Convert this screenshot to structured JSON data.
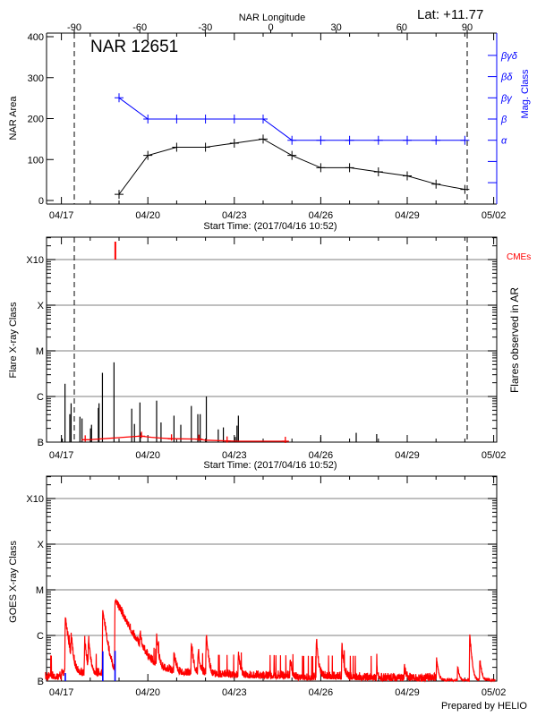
{
  "chart_data": [
    {
      "type": "line",
      "title": "NAR 12651",
      "latitude_label": "Lat: +11.77",
      "xlabel": "Start Time: (2017/04/16 10:52)",
      "top_xlabel": "NAR Longitude",
      "ylabel": "NAR Area",
      "y2label": "Mag. Class",
      "ylim": [
        0,
        400
      ],
      "yticks": [
        "0",
        "100",
        "200",
        "300",
        "400"
      ],
      "xticks": [
        "04/17",
        "04/20",
        "04/23",
        "04/26",
        "04/29",
        "05/02"
      ],
      "top_xticks": [
        "-90",
        "-60",
        "-30",
        "0",
        "30",
        "60",
        "90"
      ],
      "mag_class_ticks": [
        "α",
        "β",
        "βγ",
        "βδ",
        "βγδ"
      ],
      "limb_longitudes": [
        -90,
        90
      ],
      "x": [
        "04/19",
        "04/20",
        "04/21",
        "04/22",
        "04/23",
        "04/24",
        "04/25",
        "04/26",
        "04/27",
        "04/28",
        "04/29",
        "04/30",
        "05/01"
      ],
      "series": [
        {
          "name": "NAR Area",
          "color": "#000000",
          "values": [
            15,
            110,
            130,
            130,
            140,
            150,
            110,
            80,
            80,
            70,
            60,
            40,
            27
          ]
        },
        {
          "name": "Mag. Class",
          "color": "#0000ff",
          "values": [
            "βγ",
            "β",
            "β",
            "β",
            "β",
            "β",
            "α",
            "α",
            "α",
            "α",
            "α",
            "α",
            "α"
          ]
        }
      ]
    },
    {
      "type": "bar",
      "xlabel": "Start Time: (2017/04/16 10:52)",
      "ylabel": "Flare X-ray Class",
      "y2label": "Flares observed in AR",
      "cme_label": "CMEs",
      "yscale": "log",
      "yticks": [
        "B",
        "C",
        "M",
        "X",
        "X10"
      ],
      "xticks": [
        "04/17",
        "04/20",
        "04/23",
        "04/26",
        "04/29",
        "05/02"
      ],
      "grid": true,
      "limb_longitudes": [
        -90,
        90
      ],
      "flares": [
        [
          "04/17 00:42",
          "B1.2"
        ],
        [
          "04/17 03:00",
          "C1.9"
        ],
        [
          "04/17 07:00",
          "B4.1"
        ],
        [
          "04/17 08:05",
          "B7.1"
        ],
        [
          "04/17 15:27",
          "B3.6"
        ],
        [
          "04/17 17:10",
          "B3.3"
        ],
        [
          "04/18 00:15",
          "B2.0"
        ],
        [
          "04/18 01:06",
          "B2.4"
        ],
        [
          "04/18 06:46",
          "B5.6"
        ],
        [
          "04/18 07:20",
          "B7.1"
        ],
        [
          "04/18 10:10",
          "C3.3"
        ],
        [
          "04/18 19:49",
          "C5.6"
        ],
        [
          "04/19 10:35",
          "B5.4"
        ],
        [
          "04/19 12:50",
          "B2.5"
        ],
        [
          "04/19 17:24",
          "B7.4"
        ],
        [
          "04/19 17:40",
          "B1.6"
        ],
        [
          "04/20 07:18",
          "B8.1"
        ],
        [
          "04/20 10:58",
          "B2.7"
        ],
        [
          "04/20 21:46",
          "B3.8"
        ],
        [
          "04/21 03:26",
          "B2.4"
        ],
        [
          "04/21 12:13",
          "B6.2"
        ],
        [
          "04/21 17:37",
          "B4.1"
        ],
        [
          "04/21 19:36",
          "B4.1"
        ],
        [
          "04/22 00:42",
          "C1.0"
        ],
        [
          "04/22 10:38",
          "B1.9"
        ],
        [
          "04/22 14:53",
          "B2.1"
        ],
        [
          "04/23 00:49",
          "B1.3"
        ],
        [
          "04/23 02:14",
          "B2.3"
        ],
        [
          "04/23 03:23",
          "B3.8"
        ],
        [
          "04/26 00:01",
          "B1.3"
        ],
        [
          "04/27 05:31",
          "B1.6"
        ],
        [
          "04/27 22:34",
          "B1.5"
        ]
      ],
      "cmes": [
        [
          "04/18 20:55"
        ]
      ],
      "flares_observed_line": [
        [
          "04/17 17:30",
          0.4
        ],
        [
          "04/17 19:50",
          0.4
        ],
        [
          "04/17 22:10",
          0.4
        ],
        [
          "04/19 16:30",
          1.4
        ],
        [
          "04/19 18:45",
          1.4
        ],
        [
          "04/20 03:00",
          1.1
        ],
        [
          "04/20 10:00",
          0.9
        ],
        [
          "04/20 19:40",
          0.7
        ],
        [
          "04/21 18:30",
          0.6
        ],
        [
          "04/22 00:00",
          0.3
        ],
        [
          "04/22 18:00",
          0.1
        ],
        [
          "04/23 03:00",
          0
        ],
        [
          "04/24 18:30",
          0
        ]
      ],
      "flares_observed_markers": [
        "04/17 19:50",
        "04/19 18:45",
        "04/20 19:40",
        "04/21 18:30",
        "04/22 18:00",
        "04/24 18:30"
      ]
    },
    {
      "type": "line",
      "ylabel": "GOES X-ray Class",
      "yscale": "log",
      "yticks": [
        "B",
        "C",
        "M",
        "X",
        "X10"
      ],
      "xticks": [
        "04/17",
        "04/20",
        "04/23",
        "04/26",
        "04/29",
        "05/02"
      ],
      "grid": true,
      "credit": "Prepared by HELIO",
      "series": [
        {
          "name": "GOES long channel",
          "color": "#ff0000",
          "baseline": [
            [
              "04/16",
              1.1e-07
            ],
            [
              "04/17",
              1.3e-07
            ],
            [
              "04/18",
              1.3e-07
            ],
            [
              "04/19",
              1.5e-07
            ],
            [
              "04/20",
              1.35e-07
            ],
            [
              "04/21",
              1.3e-07
            ],
            [
              "04/22",
              1.2e-07
            ],
            [
              "04/23",
              1.15e-07
            ],
            [
              "04/24",
              1.15e-07
            ],
            [
              "04/25",
              1.05e-07
            ],
            [
              "04/26",
              1.1e-07
            ],
            [
              "04/27",
              1.05e-07
            ],
            [
              "04/28",
              1e-07
            ],
            [
              "04/29",
              1e-07
            ],
            [
              "04/30",
              1e-07
            ],
            [
              "05/01",
              1e-07
            ],
            [
              "05/02",
              1e-07
            ]
          ],
          "peaks": [
            [
              "04/17 03:15",
              "C2.0"
            ],
            [
              "04/17 08:05",
              "B7.4"
            ],
            [
              "04/17 19:25",
              "B7.7"
            ],
            [
              "04/17 22:35",
              "B7.7"
            ],
            [
              "04/18 10:28",
              "C3.4"
            ],
            [
              "04/18 20:41",
              "C5.5"
            ],
            [
              "04/19 17:24",
              "B7.2"
            ],
            [
              "04/20 07:18",
              "B8.5"
            ],
            [
              "04/20 21:46",
              "B3.9"
            ],
            [
              "04/21 12:13",
              "B6.4"
            ],
            [
              "04/21 17:54",
              "B4.2"
            ],
            [
              "04/22 00:42",
              "C1.0"
            ],
            [
              "04/23 03:23",
              "B3.9"
            ],
            [
              "04/24 22:29",
              "B2.7"
            ],
            [
              "04/25 20:21",
              "B7.3"
            ],
            [
              "04/26 17:37",
              "B5.1"
            ],
            [
              "04/27 22:48",
              "B1.6"
            ],
            [
              "04/28 21:36",
              "B1.7"
            ],
            [
              "04/30 00:29",
              "B3.0"
            ],
            [
              "04/30 18:00",
              "B2.0"
            ],
            [
              "05/01 04:05",
              "C1.0"
            ],
            [
              "05/01 12:30",
              "B2.9"
            ]
          ]
        },
        {
          "name": "GOES short channel",
          "color": "#0000ff",
          "peaks": [
            [
              "04/17 03:15",
              "B1.5"
            ],
            [
              "04/18 10:28",
              "B4.5"
            ],
            [
              "04/18 20:41",
              "B4.6"
            ]
          ]
        }
      ]
    }
  ]
}
